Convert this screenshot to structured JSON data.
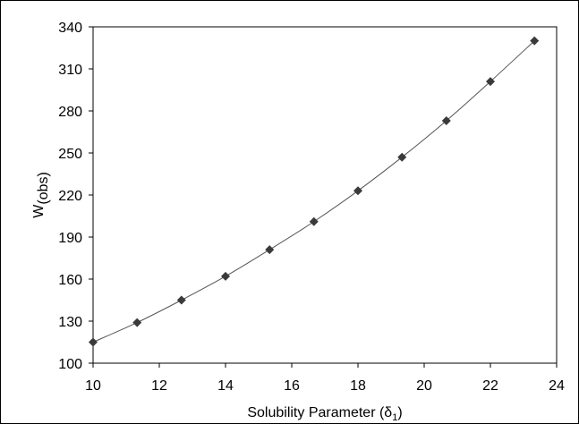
{
  "chart_data": {
    "type": "scatter",
    "title": "",
    "xlabel": {
      "main": "Solubility Parameter (δ",
      "sub": "1",
      "close": ")"
    },
    "ylabel": {
      "main": "W",
      "sub": "(obs)"
    },
    "xlim": [
      10,
      24
    ],
    "ylim": [
      100,
      340
    ],
    "xticks": [
      10,
      12,
      14,
      16,
      18,
      20,
      22,
      24
    ],
    "yticks": [
      100,
      130,
      160,
      190,
      220,
      250,
      280,
      310,
      340
    ],
    "grid": false,
    "legend": "none",
    "marker": "diamond",
    "trendline": "polynomial",
    "colors": {
      "marker": "#3a3a3a",
      "line": "#555555"
    },
    "series": [
      {
        "x": [
          10,
          11.33,
          12.67,
          14,
          15.33,
          16.67,
          18,
          19.33,
          20.67,
          22,
          23.33
        ],
        "y": [
          115,
          129,
          145,
          162,
          181,
          201,
          223,
          247,
          273,
          301,
          330
        ]
      }
    ]
  }
}
